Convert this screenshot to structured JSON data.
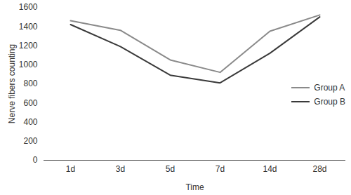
{
  "chart_data": {
    "type": "line",
    "x_label": "Time",
    "y_label": "Nerve fibers counting",
    "categories": [
      "1d",
      "3d",
      "5d",
      "7d",
      "14d",
      "28d"
    ],
    "series": [
      {
        "name": "Group A",
        "color": "#8a8a8a",
        "values": [
          1460,
          1360,
          1050,
          920,
          1350,
          1520
        ]
      },
      {
        "name": "Group B",
        "color": "#3a3a3a",
        "values": [
          1420,
          1190,
          890,
          810,
          1120,
          1500
        ]
      }
    ],
    "ylim": [
      0,
      1600
    ],
    "yticks": [
      0,
      200,
      400,
      600,
      800,
      1000,
      1200,
      1400,
      1600
    ],
    "grid": false,
    "legend": "right"
  }
}
